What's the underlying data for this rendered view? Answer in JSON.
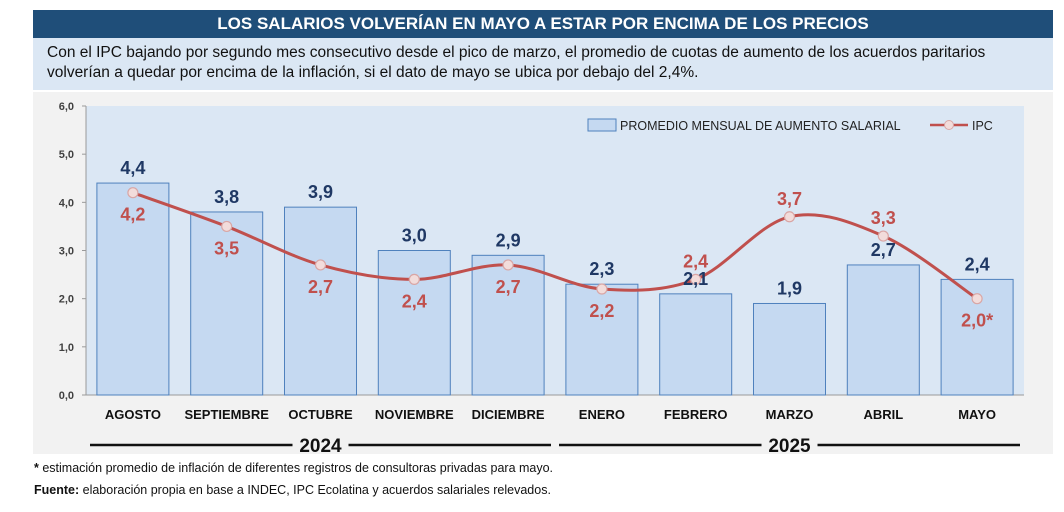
{
  "header": {
    "title": "LOS SALARIOS VOLVERÍAN EN MAYO A ESTAR POR ENCIMA DE LOS PRECIOS",
    "subtitle": "Con el IPC bajando por segundo mes consecutivo desde el pico de marzo, el promedio de cuotas de aumento de los acuerdos paritarios volverían a quedar por encima de la inflación, si el dato de mayo se ubica por debajo del 2,4%."
  },
  "chart_data": {
    "type": "bar",
    "categories": [
      "AGOSTO",
      "SEPTIEMBRE",
      "OCTUBRE",
      "NOVIEMBRE",
      "DICIEMBRE",
      "ENERO",
      "FEBRERO",
      "MARZO",
      "ABRIL",
      "MAYO"
    ],
    "series": [
      {
        "name": "PROMEDIO MENSUAL DE AUMENTO SALARIAL",
        "type": "bar",
        "color": "#c5d9f1",
        "edge_color": "#4f81bd",
        "label_color": "#1f3864",
        "values": [
          4.4,
          3.8,
          3.9,
          3.0,
          2.9,
          2.3,
          2.1,
          1.9,
          2.7,
          2.4
        ],
        "labels": [
          "4,4",
          "3,8",
          "3,9",
          "3,0",
          "2,9",
          "2,3",
          "2,1",
          "1,9",
          "2,7",
          "2,4"
        ]
      },
      {
        "name": "IPC",
        "type": "line",
        "color": "#c0504d",
        "values": [
          4.2,
          3.5,
          2.7,
          2.4,
          2.7,
          2.2,
          2.4,
          3.7,
          3.3,
          2.0
        ],
        "labels": [
          "4,2",
          "3,5",
          "2,7",
          "2,4",
          "2,7",
          "2,2",
          "2,4",
          "3,7",
          "3,3",
          "2,0*"
        ]
      }
    ],
    "yticks": [
      "0,0",
      "1,0",
      "2,0",
      "3,0",
      "4,0",
      "5,0",
      "6,0"
    ],
    "ylim": [
      0,
      6
    ],
    "grid": false,
    "legend_position": "top-right",
    "plot_bg": "#f2f2f2",
    "year_groups": [
      {
        "label": "2024",
        "from": 0,
        "to": 4
      },
      {
        "label": "2025",
        "from": 5,
        "to": 9
      }
    ]
  },
  "footnotes": {
    "estimate_star": "* ",
    "estimate_text": "estimación promedio de inflación de diferentes registros de consultoras privadas para mayo.",
    "source_label": "Fuente:",
    "source_text": " elaboración propia en base a INDEC, IPC Ecolatina y acuerdos salariales relevados."
  }
}
